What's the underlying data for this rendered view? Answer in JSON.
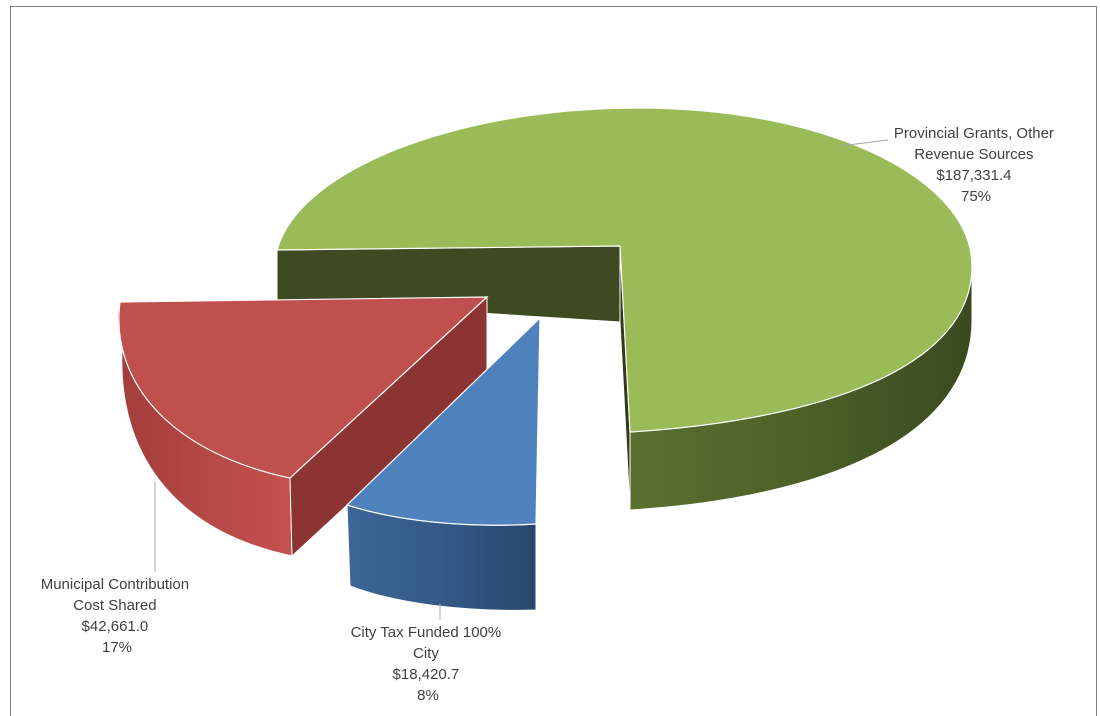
{
  "chart_data": {
    "type": "pie",
    "style": "3d-exploded",
    "title": "",
    "slices": [
      {
        "label_lines": [
          "Provincial Grants, Other",
          "Revenue Sources"
        ],
        "value_text": "$187,331.4",
        "percent_text": "75%",
        "value": 187331.4,
        "color": "#9bbb59"
      },
      {
        "label_lines": [
          "Municipal Contribution",
          "Cost Shared"
        ],
        "value_text": "$42,661.0",
        "percent_text": "17%",
        "value": 42661.0,
        "color": "#c0504d"
      },
      {
        "label_lines": [
          "City Tax Funded 100%",
          "City"
        ],
        "value_text": "$18,420.7",
        "percent_text": "8%",
        "value": 18420.7,
        "color": "#4f81bd"
      }
    ],
    "legend": "none",
    "data_labels": "outside-with-leader-lines"
  }
}
